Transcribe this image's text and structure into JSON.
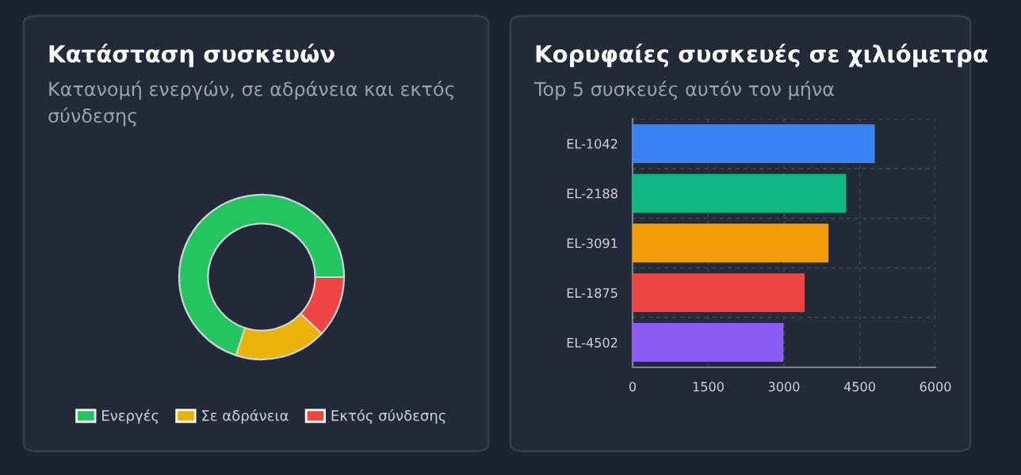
{
  "chart_data": [
    {
      "type": "donut",
      "title": "Κατάσταση συσκευών",
      "subtitle": "Κατανομή ενεργών, σε αδράνεια και εκτός σύνδεσης",
      "categories": [
        "Ενεργές",
        "Σε αδράνεια",
        "Εκτός σύνδεσης"
      ],
      "values": [
        70,
        18,
        12
      ],
      "colors": [
        "#22c55e",
        "#eab308",
        "#ef4444"
      ],
      "legend": "bottom"
    },
    {
      "type": "bar",
      "orientation": "horizontal",
      "title": "Κορυφαίες συσκευές σε χιλιόμετρα",
      "subtitle": "Top 5 συσκευές αυτόν τον μήνα",
      "categories": [
        "EL-1042",
        "EL-2188",
        "EL-3091",
        "EL-1875",
        "EL-4502"
      ],
      "values": [
        4800,
        4230,
        3880,
        3410,
        2990
      ],
      "colors": [
        "#3b82f6",
        "#10b981",
        "#f59e0b",
        "#ef4444",
        "#8b5cf6"
      ],
      "xlim": [
        0,
        6000
      ],
      "xticks": [
        0,
        1500,
        3000,
        4500,
        6000
      ],
      "grid": true
    }
  ]
}
